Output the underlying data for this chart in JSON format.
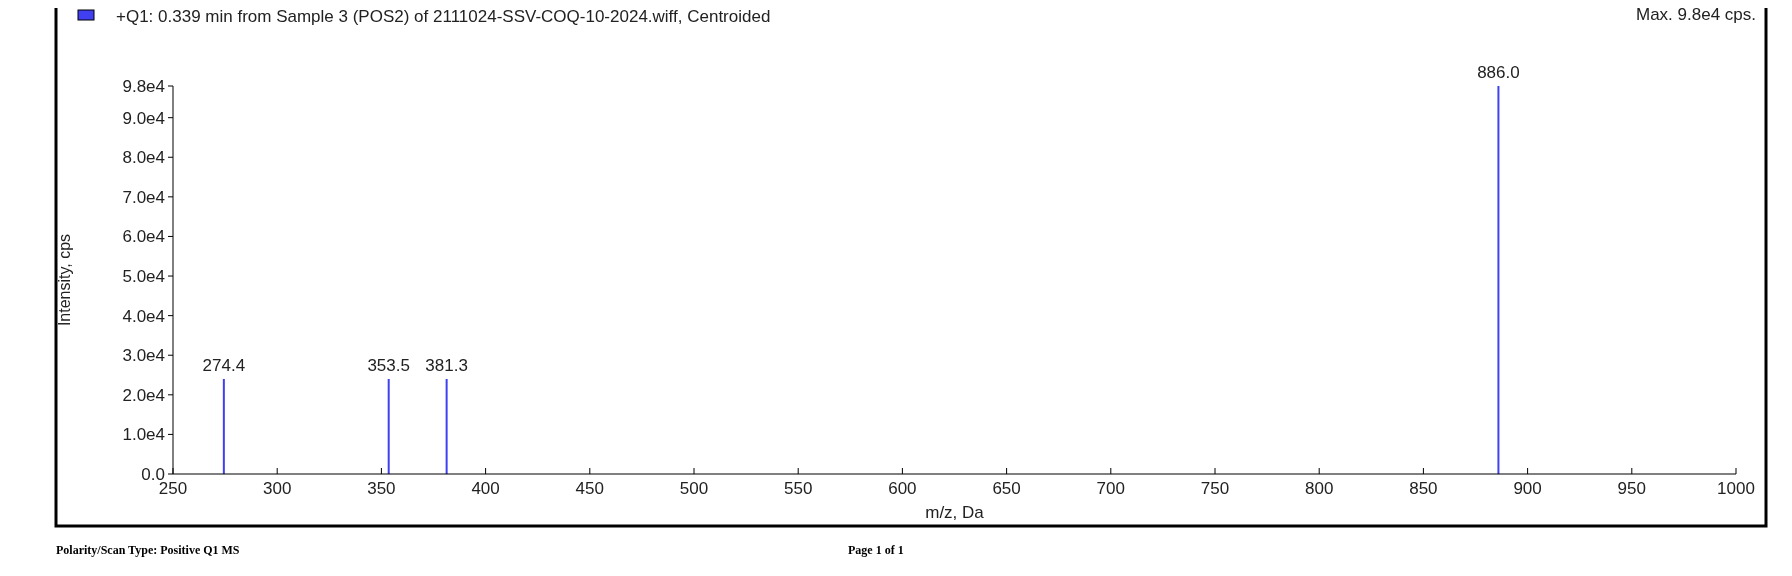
{
  "chart_data": {
    "type": "bar",
    "xlabel": "m/z, Da",
    "ylabel": "Intensity, cps",
    "x": [
      274.4,
      353.5,
      381.3,
      886.0
    ],
    "series": [
      {
        "name": "+Q1: 0.339 min from Sample 3 (POS2) of 2111024-SSV-COQ-10-2024.wiff, Centroided",
        "color": "#4040f0",
        "values": [
          24000,
          24000,
          24000,
          98000
        ]
      }
    ],
    "xlim": [
      250,
      1000
    ],
    "xticks": [
      250,
      300,
      350,
      400,
      450,
      500,
      550,
      600,
      650,
      700,
      750,
      800,
      850,
      900,
      950,
      1000
    ],
    "ylim": [
      0,
      98000
    ],
    "yticks": [
      {
        "value": 0,
        "label": "0.0"
      },
      {
        "value": 10000,
        "label": "1.0e4"
      },
      {
        "value": 20000,
        "label": "2.0e4"
      },
      {
        "value": 30000,
        "label": "3.0e4"
      },
      {
        "value": 40000,
        "label": "4.0e4"
      },
      {
        "value": 50000,
        "label": "5.0e4"
      },
      {
        "value": 60000,
        "label": "6.0e4"
      },
      {
        "value": 70000,
        "label": "7.0e4"
      },
      {
        "value": 80000,
        "label": "8.0e4"
      },
      {
        "value": 90000,
        "label": "9.0e4"
      },
      {
        "value": 98000,
        "label": "9.8e4"
      }
    ],
    "grid": false,
    "legend": "top left",
    "annotations": [
      {
        "text": "274.4",
        "x": 274.4,
        "y": 24000
      },
      {
        "text": "353.5",
        "x": 353.5,
        "y": 24000
      },
      {
        "text": "381.3",
        "x": 381.3,
        "y": 24000
      },
      {
        "text": "886.0",
        "x": 886.0,
        "y": 98000
      },
      "Max. 9.8e4 cps.",
      "Polarity/Scan Type: Positive Q1 MS",
      "Page 1 of 1"
    ]
  }
}
